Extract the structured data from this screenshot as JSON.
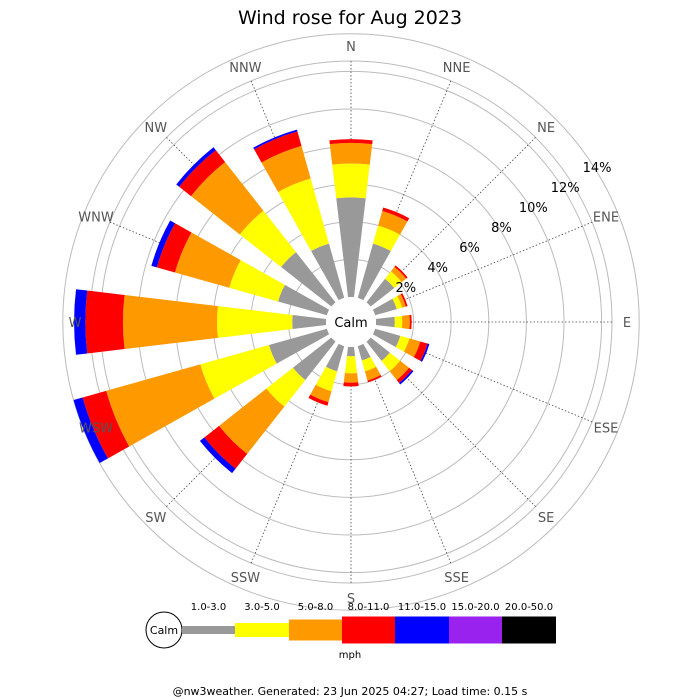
{
  "chart_data": {
    "type": "windrose",
    "title": "Wind rose for Aug 2023",
    "directions": [
      "N",
      "NNE",
      "NE",
      "ENE",
      "E",
      "ESE",
      "SE",
      "SSE",
      "S",
      "SSW",
      "SW",
      "WSW",
      "W",
      "WNW",
      "NW",
      "NNW"
    ],
    "radial_labels": [
      "2%",
      "4%",
      "6%",
      "8%",
      "10%",
      "12%",
      "14%"
    ],
    "radial_max_percent": 14,
    "calm_label": "Calm",
    "unit": "mph",
    "speed_bins": [
      {
        "range": "1.0-3.0",
        "color": "#999999"
      },
      {
        "range": "3.0-5.0",
        "color": "#ffff00"
      },
      {
        "range": "5.0-8.0",
        "color": "#ff9900"
      },
      {
        "range": "8.0-11.0",
        "color": "#ff0000"
      },
      {
        "range": "11.0-15.0",
        "color": "#0000ff"
      },
      {
        "range": "15.0-20.0",
        "color": "#9922ee"
      },
      {
        "range": "20.0-50.0",
        "color": "#000000"
      }
    ],
    "cumulative_percent": {
      "N": [
        5.3,
        7.1,
        8.2,
        8.4
      ],
      "NNE": [
        3.0,
        4.0,
        4.8,
        5.0
      ],
      "NE": [
        1.6,
        2.1,
        2.4,
        2.5
      ],
      "ENE": [
        1.2,
        1.5,
        1.7,
        1.8
      ],
      "E": [
        1.0,
        1.4,
        1.8,
        1.9
      ],
      "ESE": [
        1.4,
        1.9,
        2.5,
        2.9,
        3.0
      ],
      "SE": [
        1.3,
        2.0,
        2.6,
        2.8,
        2.9
      ],
      "SSE": [
        0.8,
        1.4,
        1.9,
        2.0
      ],
      "S": [
        0.5,
        1.4,
        1.9,
        2.1
      ],
      "SSW": [
        1.4,
        2.5,
        3.1,
        3.3
      ],
      "SW": [
        2.6,
        4.4,
        7.6,
        8.6,
        8.9
      ],
      "WSW": [
        3.2,
        7.0,
        12.2,
        13.5,
        14.0
      ],
      "W": [
        1.8,
        5.8,
        10.8,
        12.8,
        13.4
      ],
      "WNW": [
        2.7,
        5.4,
        8.4,
        9.4,
        9.7
      ],
      "NW": [
        3.4,
        6.2,
        9.5,
        10.3,
        10.5
      ],
      "NNW": [
        3.0,
        6.6,
        8.4,
        9.2,
        9.3
      ]
    }
  },
  "footer": {
    "text": "@nw3weather. Generated: 23 Jun 2025 04:27; Load time: 0.15 s"
  }
}
